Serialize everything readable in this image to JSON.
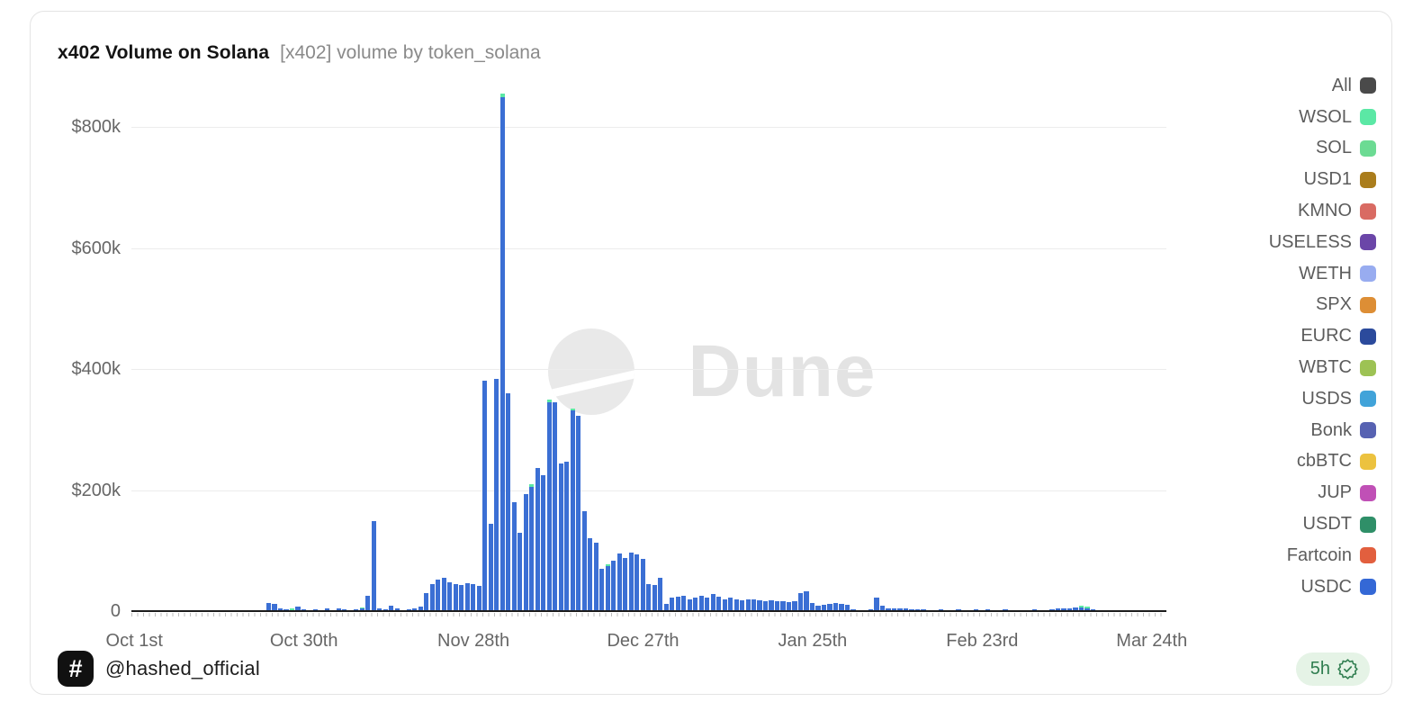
{
  "header": {
    "title": "x402 Volume on Solana",
    "subtitle": "[x402] volume by token_solana"
  },
  "watermark": {
    "text": "Dune"
  },
  "legend": {
    "position": "right",
    "items": [
      {
        "label": "All",
        "color": "#4a4a4a"
      },
      {
        "label": "WSOL",
        "color": "#5be8a5"
      },
      {
        "label": "SOL",
        "color": "#6cdb93"
      },
      {
        "label": "USD1",
        "color": "#aa7d1c"
      },
      {
        "label": "KMNO",
        "color": "#d96b63"
      },
      {
        "label": "USELESS",
        "color": "#6b46a8"
      },
      {
        "label": "WETH",
        "color": "#98acf0"
      },
      {
        "label": "SPX",
        "color": "#dd8e35"
      },
      {
        "label": "EURC",
        "color": "#2b4a9c"
      },
      {
        "label": "WBTC",
        "color": "#9dc254"
      },
      {
        "label": "USDS",
        "color": "#41a3d9"
      },
      {
        "label": "Bonk",
        "color": "#5762b2"
      },
      {
        "label": "cbBTC",
        "color": "#ecc23f"
      },
      {
        "label": "JUP",
        "color": "#c050b6"
      },
      {
        "label": "USDT",
        "color": "#2f8f68"
      },
      {
        "label": "Fartcoin",
        "color": "#e25f3e"
      },
      {
        "label": "USDC",
        "color": "#3468d6"
      }
    ]
  },
  "footer": {
    "logo_glyph": "#",
    "handle": "@hashed_official",
    "updated": "5h",
    "badge_bg": "#e5f3e6",
    "badge_color": "#2f7d4f"
  },
  "chart_data": {
    "type": "bar",
    "stacked": true,
    "title": "x402 Volume on Solana",
    "xlabel": "",
    "ylabel": "",
    "unit": "USD thousands",
    "ylim": [
      0,
      900
    ],
    "grid": "horizontal",
    "legend_position": "right",
    "yticks": [
      {
        "value": 0,
        "label": "0"
      },
      {
        "value": 200,
        "label": "$200k"
      },
      {
        "value": 400,
        "label": "$400k"
      },
      {
        "value": 600,
        "label": "$600k"
      },
      {
        "value": 800,
        "label": "$800k"
      }
    ],
    "xticks": [
      {
        "i": 0,
        "label": "Oct 1st"
      },
      {
        "i": 29,
        "label": "Oct 30th"
      },
      {
        "i": 58,
        "label": "Nov 28th"
      },
      {
        "i": 87,
        "label": "Dec 27th"
      },
      {
        "i": 116,
        "label": "Jan 25th"
      },
      {
        "i": 145,
        "label": "Feb 23rd"
      },
      {
        "i": 174,
        "label": "Mar 24th"
      }
    ],
    "x": [
      "Oct 1",
      "Oct 2",
      "Oct 3",
      "Oct 4",
      "Oct 5",
      "Oct 6",
      "Oct 7",
      "Oct 8",
      "Oct 9",
      "Oct 10",
      "Oct 11",
      "Oct 12",
      "Oct 13",
      "Oct 14",
      "Oct 15",
      "Oct 16",
      "Oct 17",
      "Oct 18",
      "Oct 19",
      "Oct 20",
      "Oct 21",
      "Oct 22",
      "Oct 23",
      "Oct 24",
      "Oct 25",
      "Oct 26",
      "Oct 27",
      "Oct 28",
      "Oct 29",
      "Oct 30",
      "Oct 31",
      "Nov 1",
      "Nov 2",
      "Nov 3",
      "Nov 4",
      "Nov 5",
      "Nov 6",
      "Nov 7",
      "Nov 8",
      "Nov 9",
      "Nov 10",
      "Nov 11",
      "Nov 12",
      "Nov 13",
      "Nov 14",
      "Nov 15",
      "Nov 16",
      "Nov 17",
      "Nov 18",
      "Nov 19",
      "Nov 20",
      "Nov 21",
      "Nov 22",
      "Nov 23",
      "Nov 24",
      "Nov 25",
      "Nov 26",
      "Nov 27",
      "Nov 28",
      "Nov 29",
      "Nov 30",
      "Dec 1",
      "Dec 2",
      "Dec 3",
      "Dec 4",
      "Dec 5",
      "Dec 6",
      "Dec 7",
      "Dec 8",
      "Dec 9",
      "Dec 10",
      "Dec 11",
      "Dec 12",
      "Dec 13",
      "Dec 14",
      "Dec 15",
      "Dec 16",
      "Dec 17",
      "Dec 18",
      "Dec 19",
      "Dec 20",
      "Dec 21",
      "Dec 22",
      "Dec 23",
      "Dec 24",
      "Dec 25",
      "Dec 26",
      "Dec 27",
      "Dec 28",
      "Dec 29",
      "Dec 30",
      "Dec 31",
      "Jan 1",
      "Jan 2",
      "Jan 3",
      "Jan 4",
      "Jan 5",
      "Jan 6",
      "Jan 7",
      "Jan 8",
      "Jan 9",
      "Jan 10",
      "Jan 11",
      "Jan 12",
      "Jan 13",
      "Jan 14",
      "Jan 15",
      "Jan 16",
      "Jan 17",
      "Jan 18",
      "Jan 19",
      "Jan 20",
      "Jan 21",
      "Jan 22",
      "Jan 23",
      "Jan 24",
      "Jan 25",
      "Jan 26",
      "Jan 27",
      "Jan 28",
      "Jan 29",
      "Jan 30",
      "Jan 31",
      "Feb 1",
      "Feb 2",
      "Feb 3",
      "Feb 4",
      "Feb 5",
      "Feb 6",
      "Feb 7",
      "Feb 8",
      "Feb 9",
      "Feb 10",
      "Feb 11",
      "Feb 12",
      "Feb 13",
      "Feb 14",
      "Feb 15",
      "Feb 16",
      "Feb 17",
      "Feb 18",
      "Feb 19",
      "Feb 20",
      "Feb 21",
      "Feb 22",
      "Feb 23",
      "Feb 24",
      "Feb 25",
      "Feb 26",
      "Feb 27",
      "Feb 28",
      "Mar 1",
      "Mar 2",
      "Mar 3",
      "Mar 4",
      "Mar 5",
      "Mar 6",
      "Mar 7",
      "Mar 8",
      "Mar 9",
      "Mar 10",
      "Mar 11",
      "Mar 12",
      "Mar 13",
      "Mar 14",
      "Mar 15",
      "Mar 16",
      "Mar 17",
      "Mar 18",
      "Mar 19",
      "Mar 20",
      "Mar 21",
      "Mar 22",
      "Mar 23",
      "Mar 24",
      "Mar 25",
      "Mar 26"
    ],
    "series": [
      {
        "name": "USDC",
        "color": "#3b6fd4",
        "values": [
          0,
          0,
          0,
          0,
          0,
          0,
          0,
          0,
          0,
          0,
          0,
          0,
          0,
          0,
          0,
          0,
          0,
          0,
          0,
          0,
          0,
          2,
          0,
          13,
          12,
          4,
          3,
          2,
          8,
          3,
          2,
          3,
          2,
          4,
          2,
          5,
          3,
          2,
          3,
          4,
          25,
          148,
          5,
          3,
          9,
          4,
          2,
          3,
          5,
          8,
          30,
          45,
          52,
          55,
          48,
          45,
          43,
          46,
          44,
          41,
          380,
          144,
          383,
          849,
          360,
          180,
          130,
          193,
          205,
          236,
          225,
          345,
          345,
          244,
          247,
          331,
          322,
          165,
          120,
          113,
          70,
          75,
          84,
          95,
          88,
          97,
          93,
          86,
          45,
          43,
          55,
          12,
          22,
          24,
          26,
          20,
          22,
          25,
          22,
          28,
          24,
          20,
          22,
          20,
          18,
          20,
          19,
          18,
          17,
          18,
          16,
          17,
          15,
          16,
          30,
          33,
          14,
          9,
          11,
          12,
          13,
          12,
          10,
          3,
          2,
          2,
          3,
          22,
          9,
          4,
          4,
          5,
          4,
          3,
          3,
          3,
          2,
          2,
          3,
          2,
          2,
          3,
          2,
          2,
          3,
          2,
          3,
          2,
          2,
          3,
          2,
          2,
          2,
          2,
          3,
          2,
          2,
          3,
          4,
          5,
          5,
          6,
          6,
          5,
          3,
          0,
          0,
          0,
          0,
          0,
          0,
          0,
          0,
          0,
          0,
          0,
          0
        ]
      },
      {
        "name": "WSOL",
        "color": "#5be8a5",
        "values_sparse": {
          "27": 3,
          "39": 2,
          "63": 6,
          "68": 4,
          "71": 5,
          "75": 4,
          "81": 3,
          "162": 3,
          "163": 2
        }
      }
    ]
  }
}
